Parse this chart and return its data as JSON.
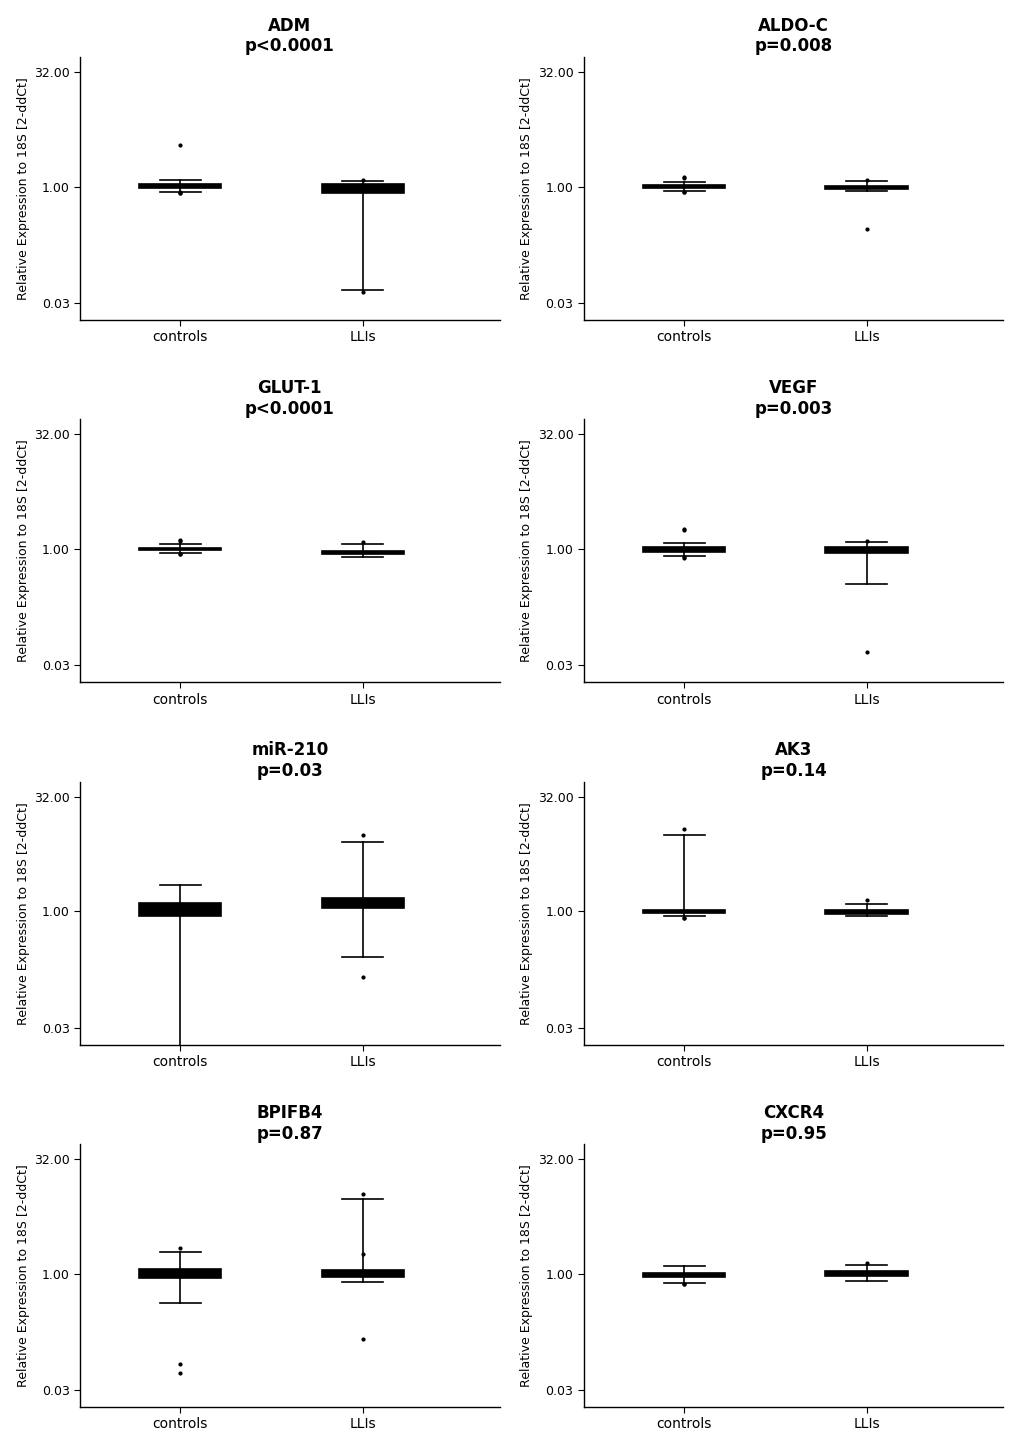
{
  "plots": [
    {
      "title": "ADM",
      "pvalue": "p<0.0001",
      "controls": {
        "whislo": 0.85,
        "q1": 0.95,
        "med": 1.0,
        "q3": 1.08,
        "whishi": 1.22,
        "fliers_above": [
          3.5
        ],
        "fliers_below": [
          0.84,
          0.83,
          0.82
        ]
      },
      "llis": {
        "whislo": 0.045,
        "q1": 0.82,
        "med": 0.91,
        "q3": 1.07,
        "whishi": 1.2,
        "fliers_above": [
          1.22
        ],
        "fliers_below": [
          0.042
        ]
      }
    },
    {
      "title": "ALDO-C",
      "pvalue": "p=0.008",
      "controls": {
        "whislo": 0.88,
        "q1": 0.96,
        "med": 1.0,
        "q3": 1.04,
        "whishi": 1.15,
        "fliers_above": [
          1.3,
          1.35
        ],
        "fliers_below": [
          0.86,
          0.84
        ]
      },
      "llis": {
        "whislo": 0.87,
        "q1": 0.92,
        "med": 0.97,
        "q3": 1.03,
        "whishi": 1.18,
        "fliers_above": [
          1.22
        ],
        "fliers_below": [
          0.28
        ]
      }
    },
    {
      "title": "GLUT-1",
      "pvalue": "p<0.0001",
      "controls": {
        "whislo": 0.89,
        "q1": 0.96,
        "med": 1.0,
        "q3": 1.03,
        "whishi": 1.18,
        "fliers_above": [
          1.28,
          1.3
        ],
        "fliers_below": [
          0.87,
          0.85
        ]
      },
      "llis": {
        "whislo": 0.79,
        "q1": 0.86,
        "med": 0.9,
        "q3": 0.94,
        "whishi": 1.18,
        "fliers_above": [
          1.25
        ],
        "fliers_below": []
      }
    },
    {
      "title": "VEGF",
      "pvalue": "p=0.003",
      "controls": {
        "whislo": 0.8,
        "q1": 0.92,
        "med": 1.0,
        "q3": 1.07,
        "whishi": 1.2,
        "fliers_above": [
          1.75,
          1.85
        ],
        "fliers_below": [
          0.78,
          0.76
        ]
      },
      "llis": {
        "whislo": 0.35,
        "q1": 0.88,
        "med": 0.95,
        "q3": 1.07,
        "whishi": 1.22,
        "fliers_above": [
          1.28
        ],
        "fliers_below": [
          0.045
        ]
      }
    },
    {
      "title": "miR-210",
      "pvalue": "p=0.03",
      "controls": {
        "whislo": 0.014,
        "q1": 0.86,
        "med": 1.02,
        "q3": 1.3,
        "whishi": 2.2,
        "fliers_above": [],
        "fliers_below": []
      },
      "llis": {
        "whislo": 0.25,
        "q1": 1.1,
        "med": 1.2,
        "q3": 1.5,
        "whishi": 8.0,
        "fliers_above": [
          10.0
        ],
        "fliers_below": [
          0.14
        ]
      }
    },
    {
      "title": "AK3",
      "pvalue": "p=0.14",
      "controls": {
        "whislo": 0.88,
        "q1": 0.94,
        "med": 0.98,
        "q3": 1.03,
        "whishi": 10.0,
        "fliers_above": [
          12.0
        ],
        "fliers_below": [
          0.82,
          0.81
        ]
      },
      "llis": {
        "whislo": 0.87,
        "q1": 0.93,
        "med": 0.97,
        "q3": 1.04,
        "whishi": 1.25,
        "fliers_above": [
          1.4
        ],
        "fliers_below": []
      }
    },
    {
      "title": "BPIFB4",
      "pvalue": "p=0.87",
      "controls": {
        "whislo": 0.42,
        "q1": 0.88,
        "med": 1.0,
        "q3": 1.15,
        "whishi": 1.9,
        "fliers_above": [
          2.2
        ],
        "fliers_below": [
          0.065,
          0.05
        ]
      },
      "llis": {
        "whislo": 0.78,
        "q1": 0.9,
        "med": 0.97,
        "q3": 1.12,
        "whishi": 9.5,
        "fliers_above": [
          11.0,
          1.8
        ],
        "fliers_below": [
          0.14
        ]
      }
    },
    {
      "title": "CXCR4",
      "pvalue": "p=0.95",
      "controls": {
        "whislo": 0.76,
        "q1": 0.92,
        "med": 0.97,
        "q3": 1.01,
        "whishi": 1.28,
        "fliers_above": [],
        "fliers_below": [
          0.74,
          0.73
        ]
      },
      "llis": {
        "whislo": 0.8,
        "q1": 0.93,
        "med": 1.01,
        "q3": 1.1,
        "whishi": 1.32,
        "fliers_above": [
          1.4
        ],
        "fliers_below": []
      }
    }
  ],
  "ylabel": "Relative Expression to 18S [2-ddCt]",
  "background_color": "#ffffff",
  "title_fontsize": 12,
  "tick_fontsize": 9,
  "ylabel_fontsize": 9
}
